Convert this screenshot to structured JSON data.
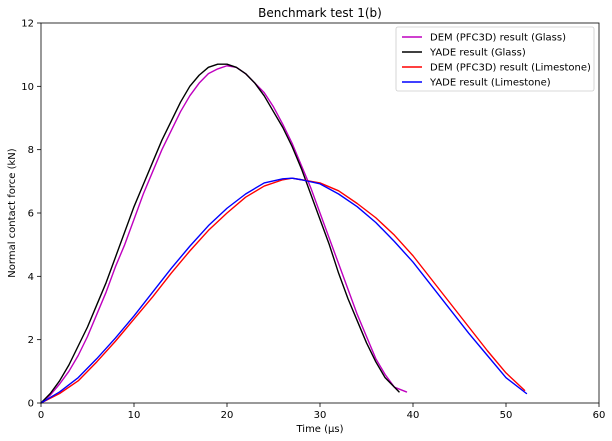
{
  "chart_data": {
    "type": "line",
    "title": "Benchmark test 1(b)",
    "xlabel": "Time (μs)",
    "ylabel": "Normal contact force (kN)",
    "xlim": [
      0,
      60
    ],
    "ylim": [
      0,
      12
    ],
    "xticks": [
      "0",
      "10",
      "20",
      "30",
      "40",
      "50",
      "60"
    ],
    "yticks": [
      "0",
      "2",
      "4",
      "6",
      "8",
      "10",
      "12"
    ],
    "grid": false,
    "legend_position": "top-right",
    "series": [
      {
        "name": "DEM (PFC3D) result (Glass)",
        "color": "#bf00bf",
        "x": [
          0,
          1,
          2,
          3,
          4,
          5,
          6,
          7,
          8,
          9,
          10,
          11,
          12,
          13,
          14,
          15,
          16,
          17,
          18,
          19,
          20,
          21,
          22,
          23,
          24,
          25,
          26,
          27,
          28,
          29,
          30,
          31,
          32,
          33,
          34,
          35,
          36,
          37,
          38,
          39.3
        ],
        "y": [
          0,
          0.25,
          0.6,
          1.0,
          1.5,
          2.1,
          2.8,
          3.5,
          4.3,
          5.0,
          5.8,
          6.6,
          7.3,
          8.0,
          8.6,
          9.2,
          9.7,
          10.1,
          10.4,
          10.55,
          10.65,
          10.6,
          10.4,
          10.1,
          9.8,
          9.35,
          8.8,
          8.2,
          7.5,
          6.8,
          6.0,
          5.2,
          4.4,
          3.6,
          2.8,
          2.1,
          1.4,
          0.9,
          0.5,
          0.35
        ]
      },
      {
        "name": "YADE result (Glass)",
        "color": "#000000",
        "x": [
          0,
          1,
          2,
          3,
          4,
          5,
          6,
          7,
          8,
          9,
          10,
          11,
          12,
          13,
          14,
          15,
          16,
          17,
          18,
          19,
          20,
          21,
          22,
          23,
          24,
          25,
          26,
          27,
          28,
          29,
          30,
          31,
          32,
          33,
          34,
          35,
          36,
          37,
          38.5
        ],
        "y": [
          0,
          0.3,
          0.7,
          1.2,
          1.8,
          2.4,
          3.1,
          3.8,
          4.6,
          5.4,
          6.2,
          6.9,
          7.6,
          8.3,
          8.9,
          9.5,
          10.0,
          10.35,
          10.6,
          10.7,
          10.7,
          10.6,
          10.4,
          10.1,
          9.7,
          9.2,
          8.7,
          8.1,
          7.4,
          6.6,
          5.8,
          5.0,
          4.1,
          3.3,
          2.6,
          1.9,
          1.3,
          0.8,
          0.35
        ]
      },
      {
        "name": "DEM (PFC3D) result (Limestone)",
        "color": "#ff0000",
        "x": [
          0,
          2,
          4,
          6,
          8,
          10,
          12,
          14,
          16,
          18,
          20,
          22,
          24,
          26,
          27,
          28,
          30,
          32,
          34,
          36,
          38,
          40,
          42,
          44,
          46,
          48,
          50,
          52
        ],
        "y": [
          0,
          0.3,
          0.7,
          1.3,
          1.95,
          2.65,
          3.35,
          4.1,
          4.8,
          5.45,
          6.0,
          6.5,
          6.85,
          7.05,
          7.1,
          7.05,
          6.95,
          6.7,
          6.3,
          5.85,
          5.3,
          4.65,
          3.9,
          3.15,
          2.4,
          1.65,
          0.95,
          0.4
        ]
      },
      {
        "name": "YADE result (Limestone)",
        "color": "#0000ff",
        "x": [
          0,
          2,
          4,
          6,
          8,
          10,
          12,
          14,
          16,
          18,
          20,
          22,
          24,
          26,
          27,
          28,
          30,
          32,
          34,
          36,
          38,
          40,
          42,
          44,
          46,
          48,
          50,
          52.2
        ],
        "y": [
          0,
          0.35,
          0.8,
          1.4,
          2.05,
          2.75,
          3.5,
          4.25,
          4.95,
          5.6,
          6.15,
          6.6,
          6.95,
          7.08,
          7.1,
          7.05,
          6.92,
          6.6,
          6.2,
          5.7,
          5.1,
          4.45,
          3.7,
          2.95,
          2.2,
          1.5,
          0.8,
          0.3
        ]
      }
    ]
  }
}
